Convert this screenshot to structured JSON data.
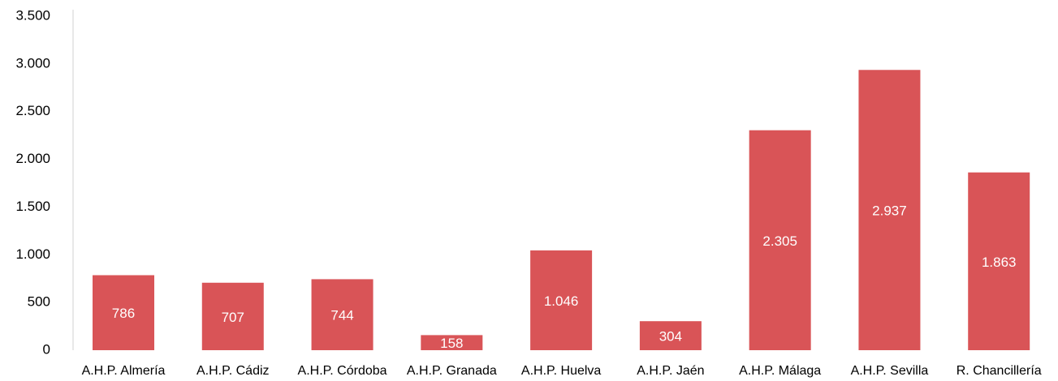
{
  "chart_data": {
    "type": "bar",
    "categories": [
      "A.H.P. Almería",
      "A.H.P. Cádiz",
      "A.H.P. Córdoba",
      "A.H.P. Granada",
      "A.H.P. Huelva",
      "A.H.P. Jaén",
      "A.H.P. Málaga",
      "A.H.P. Sevilla",
      "R. Chancillería"
    ],
    "values": [
      786,
      707,
      744,
      158,
      1046,
      304,
      2305,
      2937,
      1863
    ],
    "value_labels": [
      "786",
      "707",
      "744",
      "158",
      "1.046",
      "304",
      "2.305",
      "2.937",
      "1.863"
    ],
    "color": "#d95457",
    "ylim": [
      0,
      3500
    ],
    "yticks": [
      0,
      500,
      {
        "value": 1000,
        "label": "1.000"
      },
      {
        "value": 1500,
        "label": "1.500"
      },
      {
        "value": 2000,
        "label": "2.000"
      },
      {
        "value": 2500,
        "label": "2.500"
      },
      {
        "value": 3000,
        "label": "3.000"
      },
      {
        "value": 3500,
        "label": "3.500"
      }
    ],
    "grid": false
  }
}
